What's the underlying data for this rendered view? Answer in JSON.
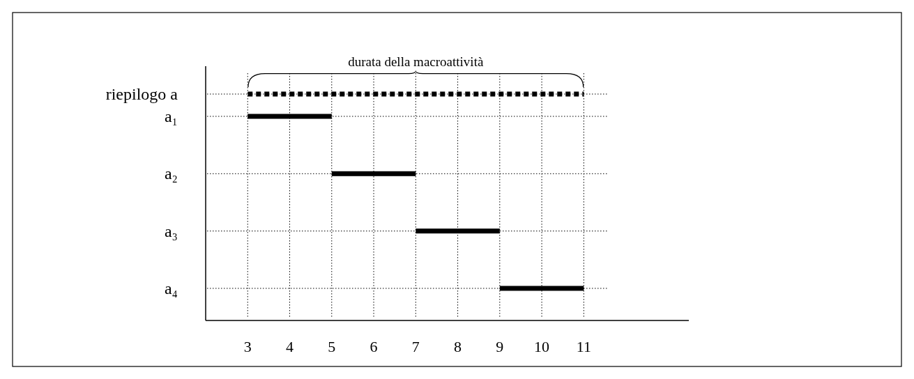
{
  "chart_data": {
    "type": "bar",
    "orientation": "horizontal",
    "categories": [
      "riepilogo a",
      "a₁",
      "a₂",
      "a₃",
      "a₄"
    ],
    "series": [
      {
        "color": "#000000",
        "line_style": "dotted",
        "base": [
          3,
          null,
          null,
          null,
          null
        ],
        "values": [
          8,
          null,
          null,
          null,
          null
        ]
      },
      {
        "color": "#000000",
        "line_style": "solid",
        "base": [
          null,
          3,
          5,
          7,
          9
        ],
        "values": [
          null,
          2,
          2,
          2,
          2
        ]
      }
    ],
    "xlim": [
      2,
      13.5
    ],
    "xticks": [
      3,
      4,
      5,
      6,
      7,
      8,
      9,
      10,
      11
    ],
    "grid": true,
    "tick_labels": "xy",
    "annotations": [
      "durata della macroattività"
    ]
  }
}
